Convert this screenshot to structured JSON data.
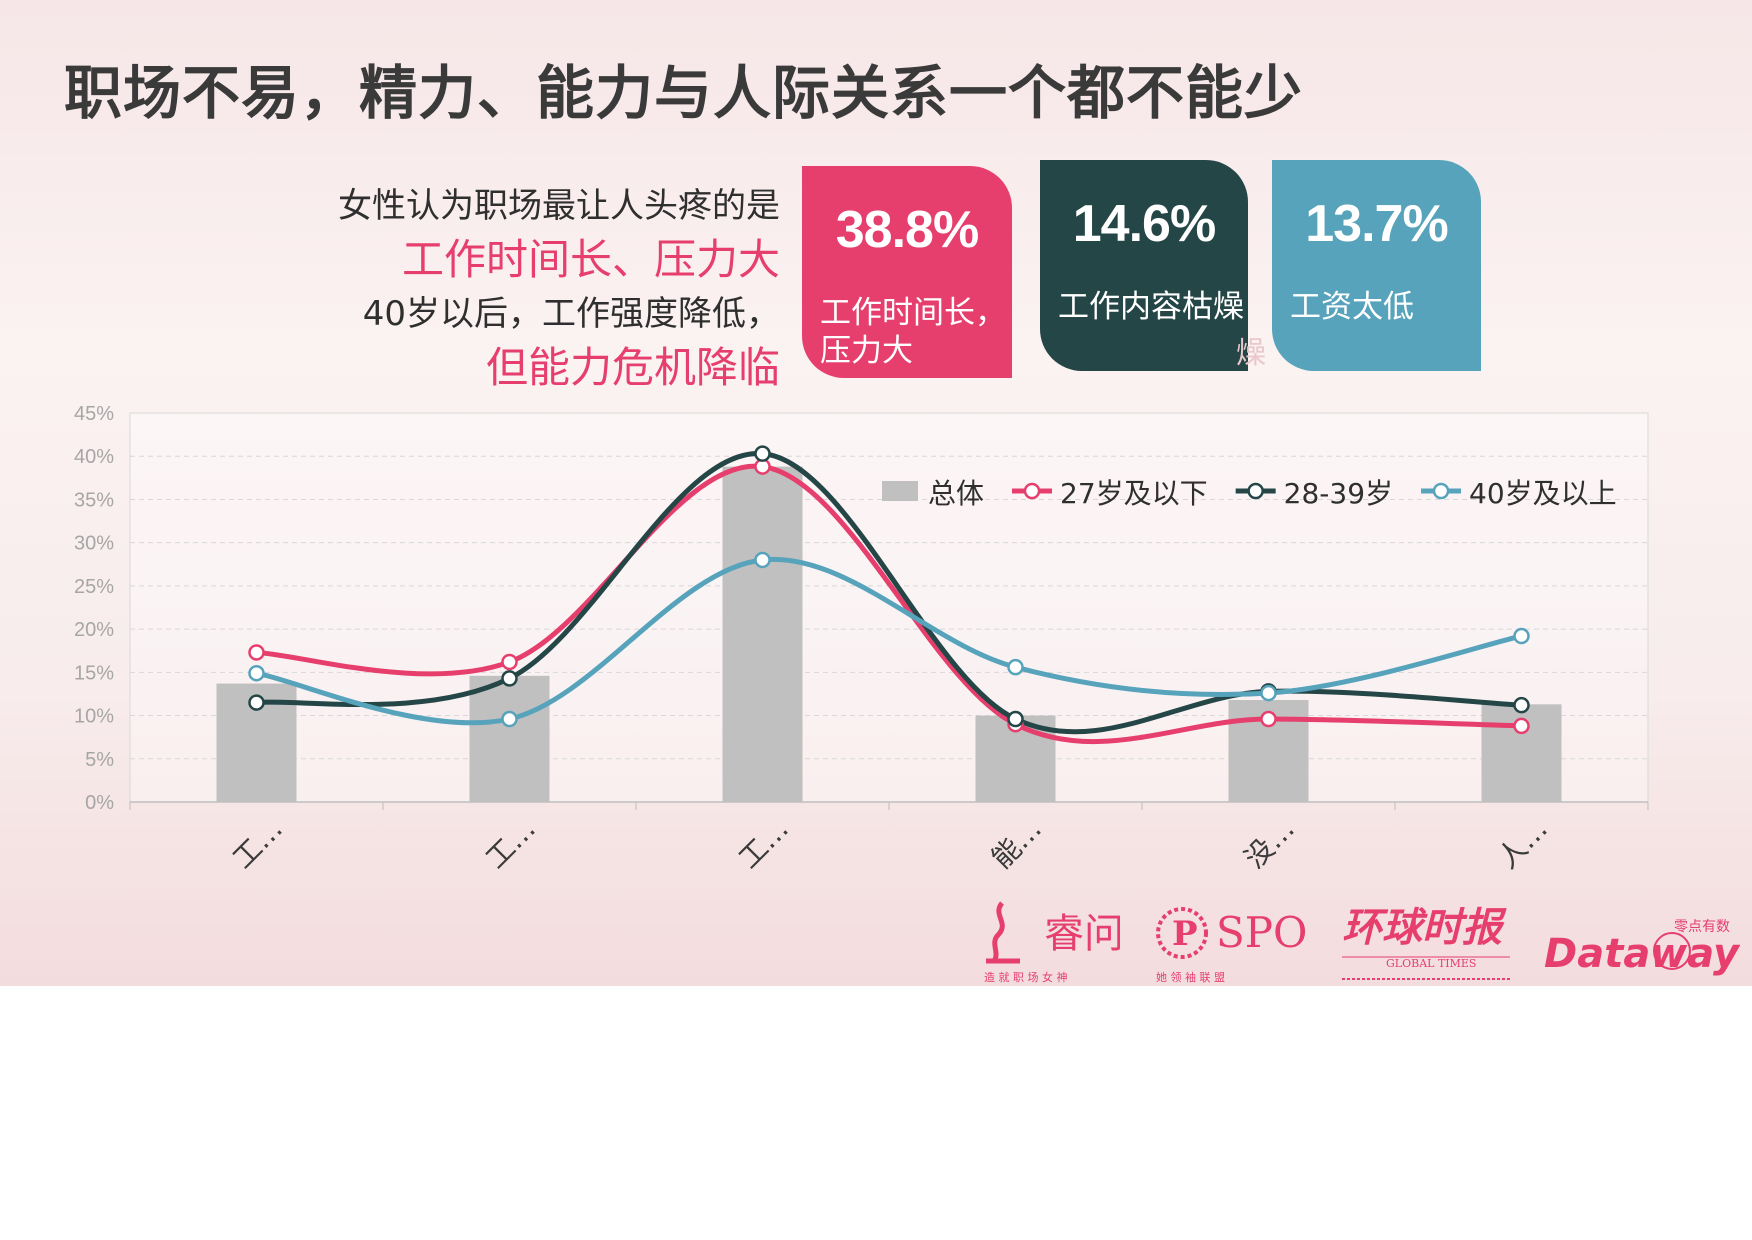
{
  "title": "职场不易，精力、能力与人际关系一个都不能少",
  "lead": {
    "line1": "女性认为职场最让人头疼的是",
    "line2": "工作时间长、压力大",
    "line3": "40岁以后，工作强度降低，",
    "line4": "但能力危机降临"
  },
  "cards": [
    {
      "pct": "38.8%",
      "label_line1": "工作时间长，",
      "label_line2": "压力大",
      "color": "#e63f6d"
    },
    {
      "pct": "14.6%",
      "label_line1": "工作内容枯燥",
      "label_line2": "",
      "color": "#254646"
    },
    {
      "pct": "13.7%",
      "label_line1": "工资太低",
      "label_line2": "",
      "color": "#56a3bb"
    }
  ],
  "ghost_char": "燥",
  "chart_data": {
    "type": "bar+line",
    "categories": [
      "工…",
      "工…",
      "工…",
      "能…",
      "没…",
      "人…"
    ],
    "yticks": [
      "0%",
      "5%",
      "10%",
      "15%",
      "20%",
      "25%",
      "30%",
      "35%",
      "40%",
      "45%"
    ],
    "ylim": [
      0,
      45
    ],
    "grid": true,
    "legend_position": "top-right",
    "series": [
      {
        "name": "总体",
        "kind": "bar",
        "color": "#c0c0c0",
        "values": [
          13.7,
          14.6,
          38.8,
          10.0,
          11.8,
          11.3
        ]
      },
      {
        "name": "27岁及以下",
        "kind": "line",
        "color": "#e63f6d",
        "values": [
          17.3,
          16.2,
          38.8,
          9.0,
          9.6,
          8.8
        ]
      },
      {
        "name": "28-39岁",
        "kind": "line",
        "color": "#254646",
        "values": [
          11.5,
          14.3,
          40.3,
          9.6,
          12.8,
          11.2
        ]
      },
      {
        "name": "40岁及以上",
        "kind": "line",
        "color": "#56a3bb",
        "values": [
          14.9,
          9.6,
          28.0,
          15.6,
          12.6,
          19.2
        ]
      }
    ]
  },
  "logos": {
    "ruiwen": {
      "name": "睿问",
      "sub": "造 就 职 场 女 神"
    },
    "spo": {
      "name": "SPO",
      "sub": "她 领 袖 联 盟"
    },
    "globaltimes": {
      "name": "环球时报",
      "sub": "GLOBAL TIMES"
    },
    "dataway": {
      "name": "Dataway",
      "sub": "零点有数"
    }
  }
}
